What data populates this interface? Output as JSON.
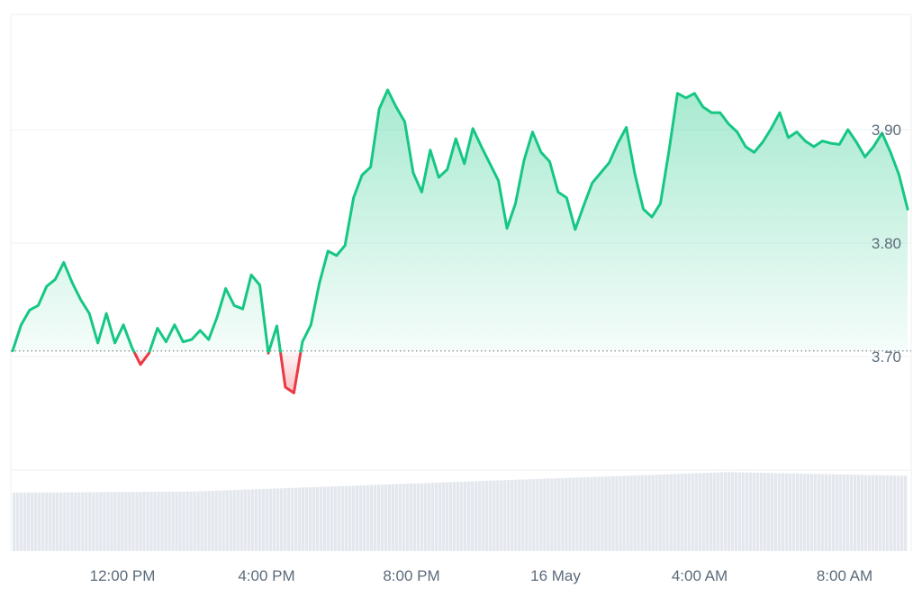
{
  "chart_data": {
    "type": "area",
    "title": "",
    "xlabel": "",
    "ylabel": "",
    "x_tick_labels": [
      "12:00 PM",
      "4:00 PM",
      "8:00 PM",
      "16 May",
      "4:00 AM",
      "8:00 AM"
    ],
    "y_tick_labels": [
      "3.70",
      "3.80",
      "3.90"
    ],
    "y_ticks": [
      3.7,
      3.8,
      3.9
    ],
    "ylim": [
      3.6,
      4.0
    ],
    "baseline": 3.705,
    "grid": "horizontal",
    "colors": {
      "up": "#16c784",
      "down": "#ea3943",
      "baseline": "#8a939c",
      "grid": "#eff2f5",
      "volume": "#e4e8ee"
    },
    "price": [
      3.705,
      3.728,
      3.741,
      3.745,
      3.762,
      3.768,
      3.783,
      3.765,
      3.75,
      3.738,
      3.712,
      3.738,
      3.712,
      3.728,
      3.708,
      3.693,
      3.703,
      3.725,
      3.713,
      3.728,
      3.713,
      3.715,
      3.723,
      3.715,
      3.735,
      3.76,
      3.745,
      3.742,
      3.772,
      3.763,
      3.703,
      3.727,
      3.673,
      3.668,
      3.713,
      3.728,
      3.765,
      3.793,
      3.789,
      3.798,
      3.84,
      3.86,
      3.867,
      3.918,
      3.935,
      3.92,
      3.907,
      3.862,
      3.845,
      3.882,
      3.858,
      3.865,
      3.892,
      3.87,
      3.901,
      3.885,
      3.87,
      3.855,
      3.813,
      3.835,
      3.873,
      3.898,
      3.88,
      3.872,
      3.845,
      3.84,
      3.812,
      3.833,
      3.853,
      3.862,
      3.871,
      3.888,
      3.902,
      3.861,
      3.83,
      3.823,
      3.835,
      3.881,
      3.932,
      3.928,
      3.932,
      3.92,
      3.915,
      3.915,
      3.905,
      3.898,
      3.885,
      3.88,
      3.889,
      3.901,
      3.915,
      3.893,
      3.898,
      3.89,
      3.885,
      3.89,
      3.888,
      3.887,
      3.9,
      3.889,
      3.876,
      3.885,
      3.897,
      3.88,
      3.86,
      3.83
    ],
    "volume_start": 0.48,
    "volume_end": 0.65
  }
}
